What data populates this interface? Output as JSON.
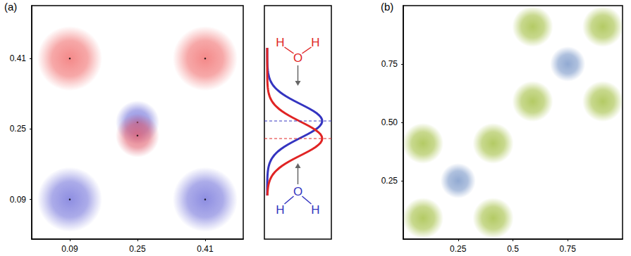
{
  "chart_data": [
    {
      "type": "scatter",
      "panel_label": "(a)",
      "xlim": [
        0,
        0.5
      ],
      "ylim": [
        0,
        0.53
      ],
      "xticks": [
        0.09,
        0.25,
        0.41
      ],
      "yticks": [
        0.09,
        0.25,
        0.41
      ],
      "tick_labels": true,
      "grid": false,
      "series": [
        {
          "color": "#f06464",
          "x": [
            0.09,
            0.41
          ],
          "y": [
            0.41,
            0.41
          ]
        },
        {
          "color": "#6a6ad8",
          "x": [
            0.09,
            0.41
          ],
          "y": [
            0.09,
            0.09
          ]
        },
        {
          "color": "#6a6ad8",
          "x": [
            0.25
          ],
          "y": [
            0.265
          ]
        },
        {
          "color": "#e05a6a",
          "x": [
            0.25
          ],
          "y": [
            0.235
          ]
        }
      ]
    },
    {
      "type": "scatter",
      "panel_label": "(b)",
      "xlim": [
        0,
        1
      ],
      "ylim": [
        0,
        1
      ],
      "xticks": [
        0.25,
        0.5,
        0.75
      ],
      "yticks": [
        0.25,
        {
          "value": 0.5,
          "label": "0.50"
        },
        0.75
      ],
      "tick_labels": true,
      "grid": false,
      "series": [
        {
          "color": "#9cba34",
          "x": [
            0.09,
            0.41,
            0.09,
            0.41,
            0.59,
            0.91,
            0.59,
            0.91
          ],
          "y": [
            0.09,
            0.09,
            0.41,
            0.41,
            0.59,
            0.59,
            0.91,
            0.91
          ]
        },
        {
          "color": "#6f8fc4",
          "x": [
            0.25,
            0.75
          ],
          "y": [
            0.25,
            0.75
          ]
        }
      ]
    }
  ],
  "inset": {
    "top_molecule": {
      "atoms": [
        "H",
        "O",
        "H"
      ],
      "color": "#e02424"
    },
    "bottom_molecule": {
      "atoms": [
        "H",
        "O",
        "H"
      ],
      "color": "#3434c0"
    }
  }
}
